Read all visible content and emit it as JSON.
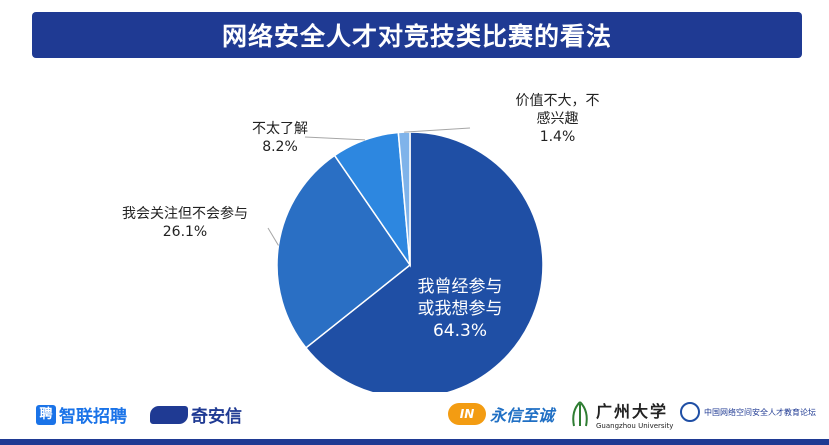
{
  "title": "网络安全人才对竞技类比赛的看法",
  "chart_data": {
    "type": "pie",
    "title": "网络安全人才对竞技类比赛的看法",
    "slices": [
      {
        "label": "我曾经参与或我想参与",
        "label_lines": [
          "我曾经参与",
          "或我想参与"
        ],
        "value": 64.3,
        "value_text": "64.3%",
        "color": "#1f4fa5"
      },
      {
        "label": "我会关注但不会参与",
        "label_lines": [
          "我会关注但不会参与"
        ],
        "value": 26.1,
        "value_text": "26.1%",
        "color": "#2a6fc4"
      },
      {
        "label": "不太了解",
        "label_lines": [
          "不太了解"
        ],
        "value": 8.2,
        "value_text": "8.2%",
        "color": "#2d87e0"
      },
      {
        "label": "价值不大，不感兴趣",
        "label_lines": [
          "价值不大，不",
          "感兴趣"
        ],
        "value": 1.4,
        "value_text": "1.4%",
        "color": "#7fb3ea"
      }
    ]
  },
  "colors": {
    "brand": "#1f3a93"
  },
  "footer": {
    "logo_zhilian": "智联招聘",
    "logo_zhilian_icon": "聘",
    "logo_qianxin": "奇安信",
    "logo_yongxin": "永信至诚",
    "logo_gzhu": "广州大学",
    "logo_gzhu_en": "Guangzhou University",
    "logo_alliance": "中国网络空间安全人才教育论坛"
  }
}
